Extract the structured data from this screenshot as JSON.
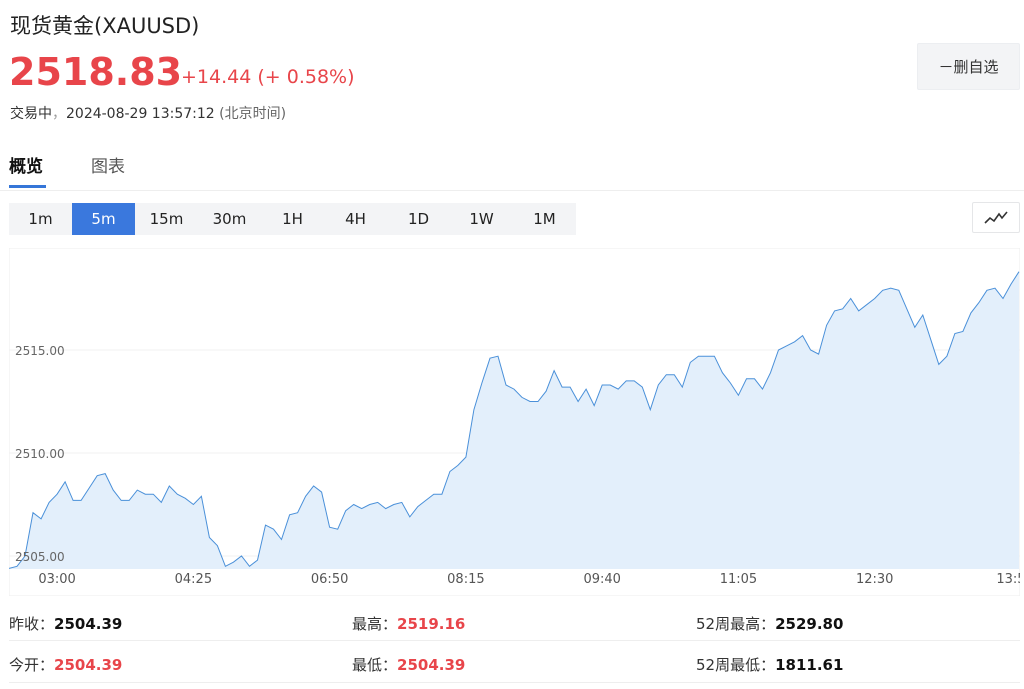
{
  "header": {
    "title": "现货黄金",
    "symbol": "(XAUUSD)",
    "price": "2518.83",
    "change": "+14.44 (+ 0.58%)",
    "status": "交易中",
    "sep": "，",
    "datetime": "2024-08-29 13:57:12",
    "timezone": "(北京时间)",
    "watchlist_button": "－删自选"
  },
  "tabs": [
    {
      "label": "概览",
      "active": true
    },
    {
      "label": "图表",
      "active": false
    }
  ],
  "periods": [
    "1m",
    "5m",
    "15m",
    "30m",
    "1H",
    "4H",
    "1D",
    "1W",
    "1M"
  ],
  "active_period": "5m",
  "chart_type_icon": "line-chart-icon",
  "colors": {
    "up": "#e8454a",
    "line": "#4a90d9",
    "area": "#e3effb",
    "active_tab": "#3576d8",
    "active_period": "#3a78dd"
  },
  "chart_data": {
    "type": "area",
    "title": "",
    "xlabel": "",
    "ylabel": "",
    "x_ticks": [
      "03:00",
      "04:25",
      "06:50",
      "08:15",
      "09:40",
      "11:05",
      "12:30",
      "13:5"
    ],
    "y_ticks": [
      "2505.00",
      "2510.00",
      "2515.00"
    ],
    "ylim": [
      2504.1,
      2519.5
    ],
    "grid": true,
    "legend": "none",
    "values": [
      2504.4,
      2504.5,
      2505.0,
      2507.1,
      2506.8,
      2507.6,
      2508.0,
      2508.6,
      2507.7,
      2507.7,
      2508.3,
      2508.9,
      2509.0,
      2508.2,
      2507.7,
      2507.7,
      2508.2,
      2508.0,
      2508.0,
      2507.6,
      2508.4,
      2508.0,
      2507.8,
      2507.5,
      2507.9,
      2505.9,
      2505.5,
      2504.5,
      2504.7,
      2505.0,
      2504.5,
      2504.8,
      2506.5,
      2506.3,
      2505.8,
      2507.0,
      2507.1,
      2507.9,
      2508.4,
      2508.1,
      2506.4,
      2506.3,
      2507.2,
      2507.5,
      2507.3,
      2507.5,
      2507.6,
      2507.3,
      2507.5,
      2507.6,
      2506.9,
      2507.4,
      2507.7,
      2508.0,
      2508.0,
      2509.1,
      2509.4,
      2509.8,
      2512.1,
      2513.4,
      2514.6,
      2514.7,
      2513.3,
      2513.1,
      2512.7,
      2512.5,
      2512.5,
      2513.0,
      2514.0,
      2513.2,
      2513.2,
      2512.5,
      2513.1,
      2512.3,
      2513.3,
      2513.3,
      2513.1,
      2513.5,
      2513.5,
      2513.2,
      2512.1,
      2513.3,
      2513.8,
      2513.8,
      2513.2,
      2514.4,
      2514.7,
      2514.7,
      2514.7,
      2513.9,
      2513.4,
      2512.8,
      2513.6,
      2513.6,
      2513.1,
      2513.9,
      2515.0,
      2515.2,
      2515.4,
      2515.7,
      2515.0,
      2514.8,
      2516.2,
      2516.9,
      2517.0,
      2517.5,
      2516.9,
      2517.2,
      2517.5,
      2517.9,
      2518.0,
      2517.9,
      2517.0,
      2516.1,
      2516.7,
      2515.5,
      2514.3,
      2514.7,
      2515.8,
      2515.9,
      2516.8,
      2517.3,
      2517.9,
      2518.0,
      2517.5,
      2518.2,
      2518.8
    ],
    "last_value": 2518.83
  },
  "stats": {
    "prev_close_label": "昨收：",
    "prev_close": "2504.39",
    "open_label": "今开：",
    "open": "2504.39",
    "high_label": "最高：",
    "high": "2519.16",
    "low_label": "最低：",
    "low": "2504.39",
    "high52_label": "52周最高：",
    "high52": "2529.80",
    "low52_label": "52周最低：",
    "low52": "1811.61"
  }
}
